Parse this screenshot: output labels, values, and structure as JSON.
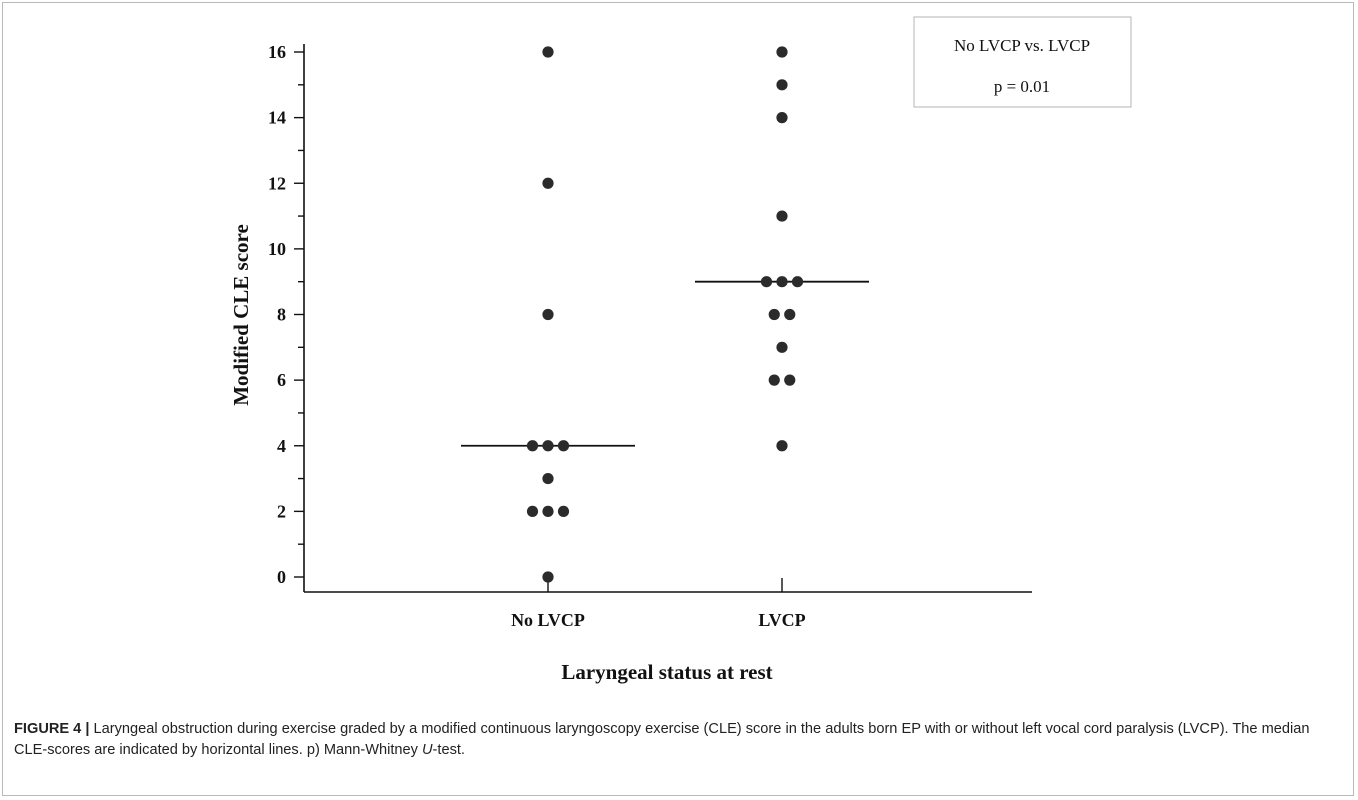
{
  "chart_data": {
    "type": "scatter",
    "ylabel": "Modified CLE score",
    "xlabel": "Laryngeal status at rest",
    "categories": [
      "No LVCP",
      "LVCP"
    ],
    "ylim": [
      0,
      16
    ],
    "yticks": [
      0,
      2,
      4,
      6,
      8,
      10,
      12,
      14,
      16
    ],
    "grid": false,
    "series": [
      {
        "category": "No LVCP",
        "values": [
          0,
          2,
          2,
          2,
          3,
          4,
          4,
          4,
          8,
          12,
          16
        ],
        "median": 4
      },
      {
        "category": "LVCP",
        "values": [
          4,
          6,
          6,
          7,
          8,
          8,
          9,
          9,
          9,
          11,
          14,
          15,
          16
        ],
        "median": 9
      }
    ],
    "annotation": {
      "line1": "No LVCP vs. LVCP",
      "line2": "p = 0.01",
      "placement": "top-right"
    }
  },
  "caption": {
    "label": "FIGURE 4 |",
    "text_before": " Laryngeal obstruction during exercise graded by a modified continuous laryngoscopy exercise (CLE) score in the adults born EP with or without left vocal cord paralysis (LVCP). The median CLE-scores are indicated by horizontal lines. p) Mann-Whitney ",
    "italic": "U",
    "text_after": "-test."
  }
}
